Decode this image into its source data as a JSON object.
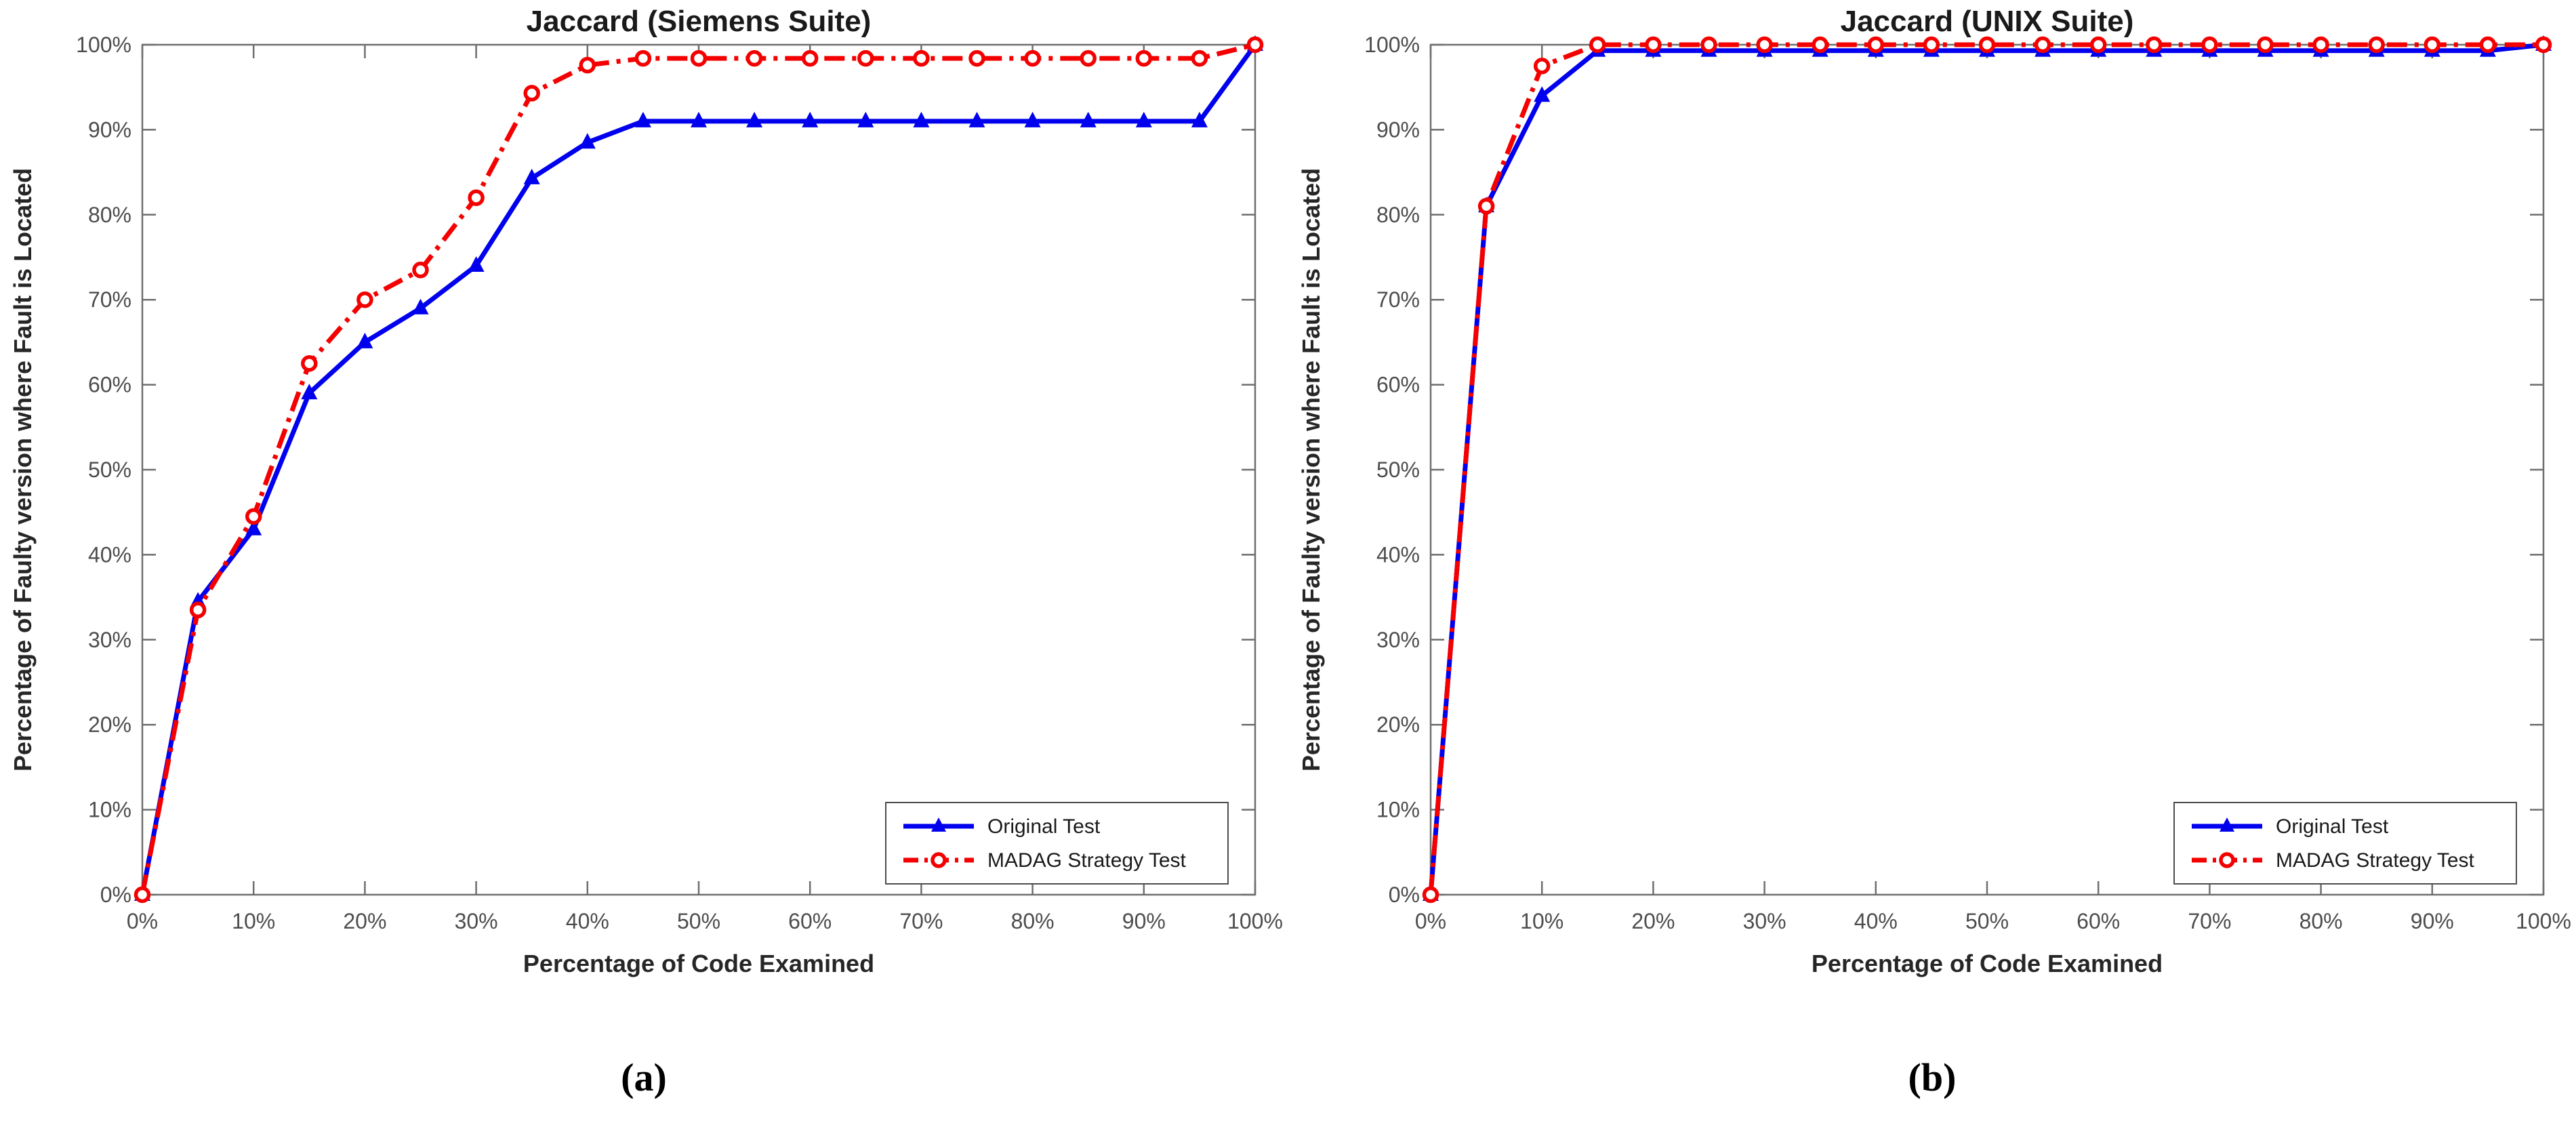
{
  "page": {
    "background": "#ffffff"
  },
  "captions": {
    "a": "(a)",
    "b": "(b)"
  },
  "colors": {
    "original_test": "#0000EE",
    "madag_test": "#F40000",
    "spine": "#6e6e6e",
    "tick_text": "#4d4d4d",
    "label_text": "#262626",
    "title_text": "#1a1a1a",
    "legend_border": "#4d4d4d",
    "legend_bg": "#ffffff"
  },
  "chart_data": [
    {
      "type": "line",
      "title": "Jaccard (Siemens Suite)",
      "xlabel": "Percentage of Code Examined",
      "ylabel": "Percentage of Faulty version where Fault is Located",
      "xlim": [
        0,
        100
      ],
      "ylim": [
        0,
        100
      ],
      "grid": false,
      "legend_position": "bottom-right",
      "x_tick_values": [
        0,
        10,
        20,
        30,
        40,
        50,
        60,
        70,
        80,
        90,
        100
      ],
      "x_tick_labels": [
        "0%",
        "10%",
        "20%",
        "30%",
        "40%",
        "50%",
        "60%",
        "70%",
        "80%",
        "90%",
        "100%"
      ],
      "y_tick_values": [
        0,
        10,
        20,
        30,
        40,
        50,
        60,
        70,
        80,
        90,
        100
      ],
      "y_tick_labels": [
        "0%",
        "10%",
        "20%",
        "30%",
        "40%",
        "50%",
        "60%",
        "70%",
        "80%",
        "90%",
        "100%"
      ],
      "x": [
        0,
        5,
        10,
        15,
        20,
        25,
        30,
        35,
        40,
        45,
        50,
        55,
        60,
        65,
        70,
        75,
        80,
        85,
        90,
        95,
        100
      ],
      "series": [
        {
          "name": "Original Test",
          "color": "#0000EE",
          "line_style": "solid",
          "marker": "triangle",
          "values": [
            0,
            34.5,
            43,
            59,
            65,
            69,
            74,
            84.3,
            88.5,
            91,
            91,
            91,
            91,
            91,
            91,
            91,
            91,
            91,
            91,
            91,
            100
          ]
        },
        {
          "name": "MADAG Strategy Test",
          "color": "#F40000",
          "line_style": "dashdot",
          "marker": "circle",
          "values": [
            0,
            33.5,
            44.5,
            62.5,
            70,
            73.5,
            82,
            94.3,
            97.6,
            98.4,
            98.4,
            98.4,
            98.4,
            98.4,
            98.4,
            98.4,
            98.4,
            98.4,
            98.4,
            98.4,
            100
          ]
        }
      ]
    },
    {
      "type": "line",
      "title": "Jaccard (UNIX Suite)",
      "xlabel": "Percentage of Code Examined",
      "ylabel": "Percentage of Faulty version where Fault is Located",
      "xlim": [
        0,
        100
      ],
      "ylim": [
        0,
        100
      ],
      "grid": false,
      "legend_position": "bottom-right",
      "x_tick_values": [
        0,
        10,
        20,
        30,
        40,
        50,
        60,
        70,
        80,
        90,
        100
      ],
      "x_tick_labels": [
        "0%",
        "10%",
        "20%",
        "30%",
        "40%",
        "50%",
        "60%",
        "70%",
        "80%",
        "90%",
        "100%"
      ],
      "y_tick_values": [
        0,
        10,
        20,
        30,
        40,
        50,
        60,
        70,
        80,
        90,
        100
      ],
      "y_tick_labels": [
        "0%",
        "10%",
        "20%",
        "30%",
        "40%",
        "50%",
        "60%",
        "70%",
        "80%",
        "90%",
        "100%"
      ],
      "x": [
        0,
        5,
        10,
        15,
        20,
        25,
        30,
        35,
        40,
        45,
        50,
        55,
        60,
        65,
        70,
        75,
        80,
        85,
        90,
        95,
        100
      ],
      "series": [
        {
          "name": "Original Test",
          "color": "#0000EE",
          "line_style": "solid",
          "marker": "triangle",
          "values": [
            0,
            81,
            94,
            99.3,
            99.3,
            99.3,
            99.3,
            99.3,
            99.3,
            99.3,
            99.3,
            99.3,
            99.3,
            99.3,
            99.3,
            99.3,
            99.3,
            99.3,
            99.3,
            99.3,
            100
          ]
        },
        {
          "name": "MADAG Strategy Test",
          "color": "#F40000",
          "line_style": "dashdot",
          "marker": "circle",
          "values": [
            0,
            81,
            97.5,
            100,
            100,
            100,
            100,
            100,
            100,
            100,
            100,
            100,
            100,
            100,
            100,
            100,
            100,
            100,
            100,
            100,
            100
          ]
        }
      ]
    }
  ]
}
